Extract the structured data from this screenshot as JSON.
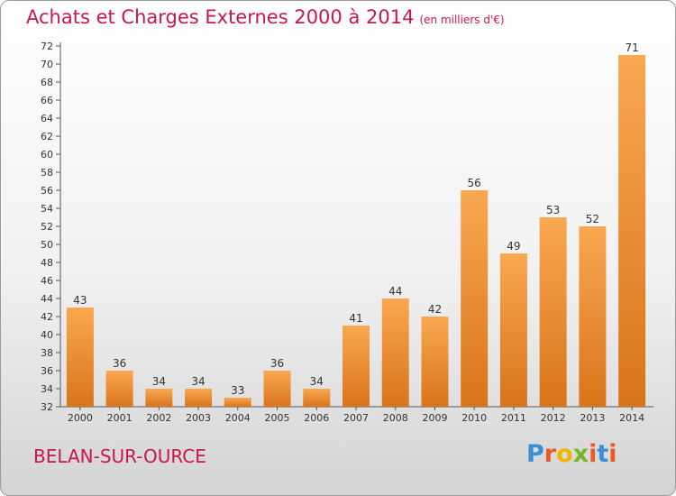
{
  "header": {
    "title": "Achats et Charges Externes 2000 à 2014",
    "subtitle": "(en milliers d'€)"
  },
  "footer": {
    "place": "BELAN-SUR-OURCE",
    "logo_letters": [
      "P",
      "r",
      "o",
      "x",
      "i",
      "t",
      "i"
    ]
  },
  "colors": {
    "title": "#c8174c",
    "bar_light": "#f9a851",
    "bar_dark": "#d9741a",
    "logo": [
      "#3a8fd6",
      "#e85a26",
      "#f2b400",
      "#7ab51d",
      "#e85a26",
      "#3a8fd6",
      "#e85a26"
    ]
  },
  "chart_data": {
    "type": "bar",
    "title": "Achats et Charges Externes 2000 à 2014",
    "subtitle": "(en milliers d'€)",
    "categories": [
      "2000",
      "2001",
      "2002",
      "2003",
      "2004",
      "2005",
      "2006",
      "2007",
      "2008",
      "2009",
      "2010",
      "2011",
      "2012",
      "2013",
      "2014"
    ],
    "values": [
      43,
      36,
      34,
      34,
      33,
      36,
      34,
      41,
      44,
      42,
      56,
      49,
      53,
      52,
      71
    ],
    "ylim": [
      32,
      72
    ],
    "ytick_step": 2,
    "grid": false,
    "legend": "none"
  }
}
